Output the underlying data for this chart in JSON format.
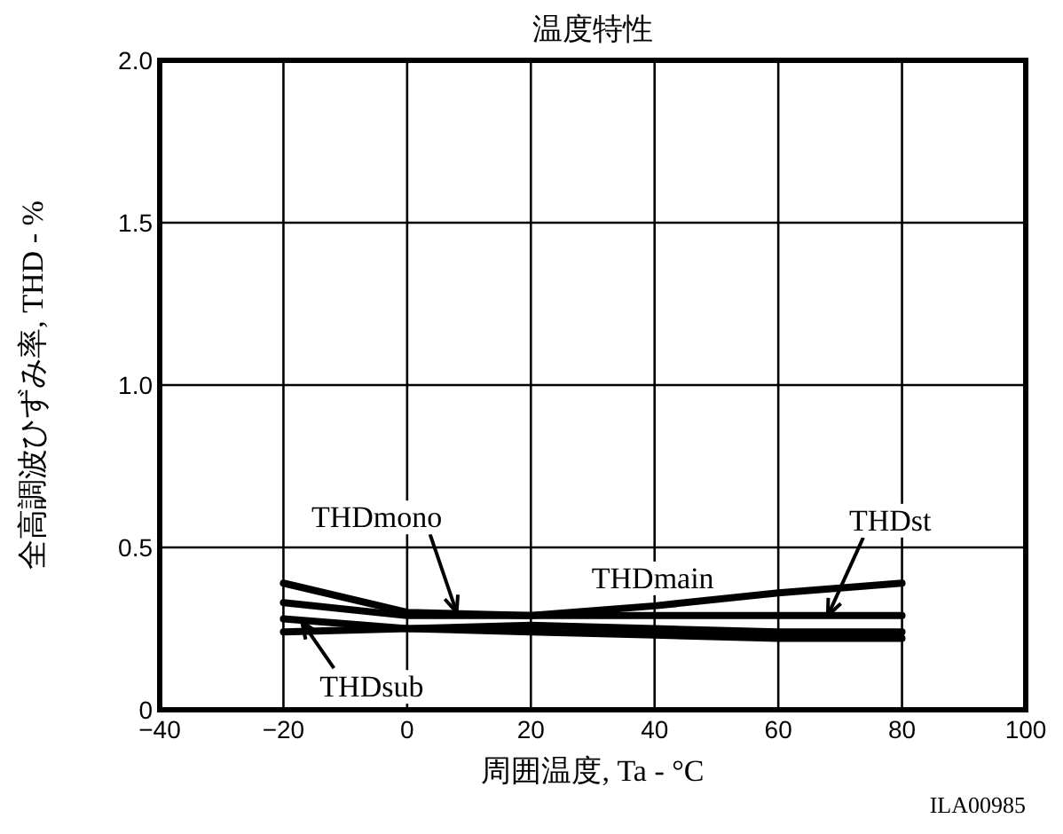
{
  "chart_data": {
    "type": "line",
    "title": "温度特性",
    "xlabel": "周囲温度, Ta - °C",
    "ylabel": "全高調波ひずみ率, THD - %",
    "xlim": [
      -40,
      100
    ],
    "xticks": [
      {
        "value": -40,
        "label": "−40"
      },
      {
        "value": -20,
        "label": "−20"
      },
      0,
      20,
      40,
      60,
      80,
      100
    ],
    "ylim": [
      0,
      2.0
    ],
    "yticks": [
      0,
      {
        "value": 0.5,
        "label": "0.5"
      },
      {
        "value": 1.0,
        "label": "1.0"
      },
      {
        "value": 1.5,
        "label": "1.5"
      },
      {
        "value": 2.0,
        "label": "2.0"
      }
    ],
    "grid": true,
    "marker": "none",
    "line_style": "solid",
    "x": [
      -20,
      0,
      20,
      40,
      60,
      80
    ],
    "series": [
      {
        "color": "#000000",
        "values": [
          0.39,
          0.3,
          0.29,
          0.32,
          0.36,
          0.39
        ]
      },
      {
        "color": "#000000",
        "values": [
          0.33,
          0.29,
          0.29,
          0.29,
          0.29,
          0.29
        ]
      },
      {
        "color": "#000000",
        "values": [
          0.28,
          0.25,
          0.24,
          0.23,
          0.22,
          0.22
        ]
      },
      {
        "color": "#000000",
        "values": [
          0.24,
          0.25,
          0.26,
          0.25,
          0.24,
          0.24
        ]
      }
    ],
    "annotations": [
      {
        "text": "THDmono",
        "x": 8,
        "y": 0.3
      },
      {
        "text": "THDmain",
        "x": 40,
        "y": 0.32
      },
      {
        "text": "THDst",
        "x": 68,
        "y": 0.29
      },
      {
        "text": "THDsub",
        "x": -17,
        "y": 0.27
      },
      "ILA00985"
    ]
  }
}
